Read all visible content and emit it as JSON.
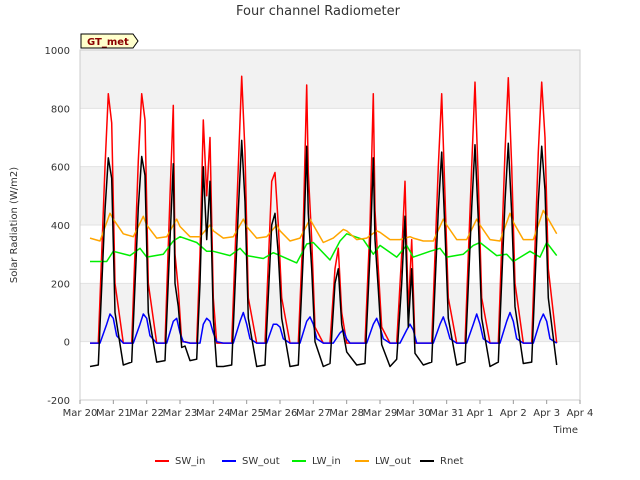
{
  "chart_data": {
    "type": "line",
    "title": "Four channel Radiometer",
    "xlabel": "Time",
    "ylabel": "Solar Radiation (W/m2)",
    "ylim": [
      -200,
      1000
    ],
    "xlim": [
      0,
      15
    ],
    "yticks": [
      -200,
      0,
      200,
      400,
      600,
      800,
      1000
    ],
    "xticks": [
      {
        "x": 0,
        "label": "Mar 20"
      },
      {
        "x": 1,
        "label": "Mar 21"
      },
      {
        "x": 2,
        "label": "Mar 22"
      },
      {
        "x": 3,
        "label": "Mar 23"
      },
      {
        "x": 4,
        "label": "Mar 24"
      },
      {
        "x": 5,
        "label": "Mar 25"
      },
      {
        "x": 6,
        "label": "Mar 26"
      },
      {
        "x": 7,
        "label": "Mar 27"
      },
      {
        "x": 8,
        "label": "Mar 28"
      },
      {
        "x": 9,
        "label": "Mar 29"
      },
      {
        "x": 10,
        "label": "Mar 30"
      },
      {
        "x": 11,
        "label": "Mar 31"
      },
      {
        "x": 12,
        "label": "Apr 1"
      },
      {
        "x": 13,
        "label": "Apr 2"
      },
      {
        "x": 14,
        "label": "Apr 3"
      },
      {
        "x": 15,
        "label": "Apr 4"
      }
    ],
    "grid": true,
    "legend_position": "bottom",
    "badge": "GT_met",
    "series": [
      {
        "name": "SW_in",
        "color": "#ff0000",
        "x": [
          0.3,
          0.55,
          0.75,
          0.85,
          0.95,
          1.05,
          1.3,
          1.55,
          1.75,
          1.85,
          1.95,
          2.05,
          2.3,
          2.55,
          2.7,
          2.8,
          2.85,
          2.95,
          3.05,
          3.15,
          3.3,
          3.5,
          3.6,
          3.7,
          3.8,
          3.9,
          4.0,
          4.1,
          4.3,
          4.55,
          4.75,
          4.85,
          4.95,
          5.05,
          5.3,
          5.55,
          5.75,
          5.85,
          5.95,
          6.05,
          6.3,
          6.55,
          6.7,
          6.8,
          6.85,
          6.95,
          7.05,
          7.3,
          7.5,
          7.65,
          7.75,
          7.85,
          8.0,
          8.3,
          8.55,
          8.7,
          8.8,
          8.85,
          8.95,
          9.05,
          9.3,
          9.5,
          9.65,
          9.75,
          9.85,
          9.95,
          10.05,
          10.3,
          10.55,
          10.75,
          10.85,
          10.95,
          11.05,
          11.3,
          11.55,
          11.75,
          11.85,
          11.95,
          12.05,
          12.3,
          12.55,
          12.75,
          12.85,
          12.95,
          13.05,
          13.3,
          13.55,
          13.75,
          13.85,
          13.95,
          14.05,
          14.3
        ],
        "y": [
          -5,
          -5,
          600,
          850,
          750,
          200,
          -5,
          -5,
          620,
          850,
          760,
          200,
          -5,
          -5,
          500,
          810,
          300,
          180,
          0,
          0,
          -5,
          -5,
          300,
          760,
          500,
          700,
          150,
          -5,
          -5,
          -5,
          600,
          910,
          650,
          150,
          -5,
          -5,
          550,
          580,
          400,
          150,
          -5,
          -5,
          400,
          880,
          580,
          350,
          50,
          -5,
          -5,
          250,
          320,
          100,
          -5,
          -5,
          -5,
          400,
          850,
          450,
          250,
          50,
          -5,
          -5,
          300,
          550,
          100,
          350,
          -5,
          -5,
          -5,
          600,
          850,
          500,
          150,
          -5,
          -5,
          600,
          890,
          550,
          150,
          -5,
          -5,
          650,
          905,
          600,
          200,
          -5,
          -5,
          650,
          890,
          700,
          250,
          -5
        ]
      },
      {
        "name": "SW_out",
        "color": "#0000ff",
        "x": [
          0.3,
          0.6,
          0.8,
          0.9,
          1.0,
          1.1,
          1.3,
          1.6,
          1.8,
          1.9,
          2.0,
          2.1,
          2.3,
          2.6,
          2.8,
          2.9,
          3.0,
          3.1,
          3.3,
          3.6,
          3.7,
          3.8,
          3.9,
          4.0,
          4.1,
          4.3,
          4.6,
          4.8,
          4.9,
          5.0,
          5.1,
          5.3,
          5.6,
          5.8,
          5.9,
          6.0,
          6.1,
          6.3,
          6.6,
          6.8,
          6.9,
          7.0,
          7.1,
          7.3,
          7.6,
          7.8,
          7.9,
          8.0,
          8.1,
          8.3,
          8.6,
          8.8,
          8.9,
          9.0,
          9.1,
          9.3,
          9.6,
          9.8,
          9.9,
          10.0,
          10.1,
          10.3,
          10.6,
          10.8,
          10.9,
          11.0,
          11.1,
          11.3,
          11.6,
          11.8,
          11.9,
          12.0,
          12.1,
          12.3,
          12.6,
          12.8,
          12.9,
          13.0,
          13.1,
          13.3,
          13.6,
          13.8,
          13.9,
          14.0,
          14.1,
          14.3
        ],
        "y": [
          -5,
          -5,
          60,
          95,
          80,
          20,
          -5,
          -5,
          60,
          95,
          80,
          20,
          -5,
          -5,
          70,
          80,
          30,
          0,
          -5,
          -5,
          60,
          80,
          70,
          30,
          0,
          -5,
          -5,
          70,
          100,
          60,
          10,
          -5,
          -5,
          60,
          60,
          50,
          10,
          -5,
          -5,
          70,
          85,
          60,
          10,
          -5,
          -5,
          30,
          40,
          10,
          -5,
          -5,
          -5,
          60,
          80,
          50,
          10,
          -5,
          -5,
          40,
          60,
          40,
          -5,
          -5,
          -5,
          60,
          85,
          50,
          10,
          -5,
          -5,
          60,
          95,
          60,
          10,
          -5,
          -5,
          70,
          100,
          70,
          10,
          -5,
          -5,
          70,
          95,
          70,
          10,
          -5
        ]
      },
      {
        "name": "LW_in",
        "color": "#00ee00",
        "x": [
          0.3,
          0.8,
          1.0,
          1.5,
          1.8,
          2.0,
          2.5,
          2.8,
          3.0,
          3.5,
          3.8,
          4.0,
          4.5,
          4.8,
          5.0,
          5.5,
          5.8,
          6.0,
          6.5,
          6.8,
          7.0,
          7.5,
          7.8,
          8.0,
          8.5,
          8.8,
          9.0,
          9.5,
          9.8,
          10.0,
          10.5,
          10.8,
          11.0,
          11.5,
          11.8,
          12.0,
          12.5,
          12.8,
          13.0,
          13.5,
          13.8,
          14.0,
          14.3
        ],
        "y": [
          275,
          275,
          310,
          295,
          320,
          290,
          300,
          345,
          360,
          340,
          310,
          310,
          295,
          320,
          295,
          285,
          305,
          295,
          270,
          335,
          340,
          280,
          345,
          370,
          350,
          300,
          330,
          290,
          330,
          290,
          310,
          320,
          290,
          300,
          330,
          340,
          295,
          300,
          275,
          310,
          290,
          340,
          295
        ]
      },
      {
        "name": "LW_out",
        "color": "#ffa500",
        "x": [
          0.3,
          0.6,
          0.9,
          1.0,
          1.3,
          1.6,
          1.9,
          2.0,
          2.3,
          2.6,
          2.9,
          3.0,
          3.3,
          3.6,
          3.9,
          4.0,
          4.3,
          4.6,
          4.9,
          5.0,
          5.3,
          5.6,
          5.9,
          6.0,
          6.3,
          6.6,
          6.9,
          7.0,
          7.3,
          7.6,
          7.9,
          8.0,
          8.3,
          8.6,
          8.9,
          9.0,
          9.3,
          9.6,
          9.9,
          10.0,
          10.3,
          10.6,
          10.9,
          11.0,
          11.3,
          11.6,
          11.9,
          12.0,
          12.3,
          12.6,
          12.9,
          13.0,
          13.3,
          13.6,
          13.9,
          14.0,
          14.3
        ],
        "y": [
          355,
          345,
          440,
          420,
          370,
          360,
          430,
          400,
          355,
          360,
          420,
          395,
          360,
          360,
          400,
          380,
          355,
          360,
          420,
          395,
          355,
          360,
          400,
          380,
          345,
          355,
          420,
          400,
          340,
          355,
          385,
          380,
          350,
          355,
          380,
          375,
          350,
          350,
          360,
          355,
          345,
          345,
          420,
          400,
          350,
          350,
          420,
          400,
          350,
          345,
          440,
          410,
          350,
          350,
          450,
          430,
          370
        ]
      },
      {
        "name": "Rnet",
        "color": "#000000",
        "x": [
          0.3,
          0.55,
          0.75,
          0.85,
          0.95,
          1.05,
          1.3,
          1.55,
          1.75,
          1.85,
          1.95,
          2.05,
          2.3,
          2.55,
          2.7,
          2.8,
          2.85,
          2.95,
          3.05,
          3.15,
          3.3,
          3.5,
          3.6,
          3.7,
          3.8,
          3.9,
          4.0,
          4.1,
          4.3,
          4.55,
          4.75,
          4.85,
          4.95,
          5.05,
          5.3,
          5.55,
          5.75,
          5.85,
          5.95,
          6.05,
          6.3,
          6.55,
          6.7,
          6.8,
          6.85,
          6.95,
          7.05,
          7.3,
          7.5,
          7.65,
          7.75,
          7.85,
          8.0,
          8.3,
          8.55,
          8.7,
          8.8,
          8.85,
          8.95,
          9.05,
          9.3,
          9.5,
          9.65,
          9.75,
          9.85,
          9.95,
          10.05,
          10.3,
          10.55,
          10.75,
          10.85,
          10.95,
          11.05,
          11.3,
          11.55,
          11.75,
          11.85,
          11.95,
          12.05,
          12.3,
          12.55,
          12.75,
          12.85,
          12.95,
          13.05,
          13.3,
          13.55,
          13.75,
          13.85,
          13.95,
          14.05,
          14.3
        ],
        "y": [
          -85,
          -80,
          450,
          630,
          560,
          100,
          -80,
          -70,
          460,
          635,
          570,
          100,
          -70,
          -65,
          350,
          610,
          200,
          120,
          -20,
          -15,
          -65,
          -60,
          200,
          600,
          350,
          550,
          80,
          -85,
          -85,
          -80,
          450,
          690,
          480,
          80,
          -85,
          -80,
          400,
          440,
          300,
          80,
          -85,
          -80,
          300,
          670,
          440,
          250,
          0,
          -85,
          -75,
          200,
          250,
          60,
          -35,
          -80,
          -75,
          300,
          630,
          350,
          180,
          -10,
          -85,
          -60,
          200,
          430,
          50,
          250,
          -40,
          -80,
          -70,
          450,
          650,
          380,
          80,
          -80,
          -70,
          460,
          675,
          420,
          80,
          -85,
          -70,
          480,
          680,
          440,
          120,
          -75,
          -70,
          480,
          670,
          520,
          150,
          -80
        ]
      }
    ]
  }
}
